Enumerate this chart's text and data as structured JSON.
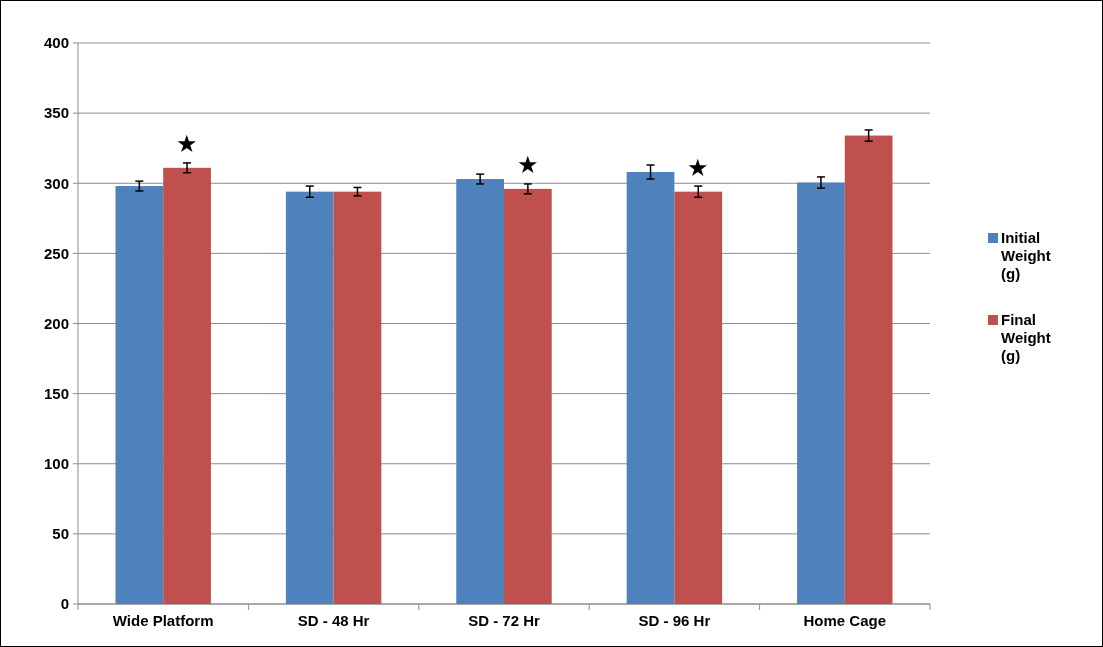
{
  "chart_data": {
    "type": "bar",
    "categories": [
      "Wide Platform",
      "SD - 48 Hr",
      "SD - 72 Hr",
      "SD - 96 Hr",
      "Home Cage"
    ],
    "series": [
      {
        "name": "Initial Weight (g)",
        "color": "#4f81bd",
        "values": [
          298,
          294,
          303,
          308,
          300.5
        ],
        "errors": [
          3.5,
          4,
          3.5,
          5,
          4
        ]
      },
      {
        "name": "Final Weight (g)",
        "color": "#c0504d",
        "values": [
          311,
          294,
          296,
          294,
          334
        ],
        "errors": [
          3.5,
          3,
          3.5,
          4,
          4
        ]
      }
    ],
    "ylim": [
      0,
      400
    ],
    "yticks": [
      0,
      50,
      100,
      150,
      200,
      250,
      300,
      350,
      400
    ],
    "grid": "y",
    "legend": "right",
    "annotations": [
      {
        "text": "★",
        "x": "Wide Platform",
        "y": 311
      },
      {
        "text": "★",
        "x": "SD - 72 Hr",
        "y": 296
      },
      {
        "text": "★",
        "x": "SD - 96 Hr",
        "y": 294
      }
    ]
  }
}
